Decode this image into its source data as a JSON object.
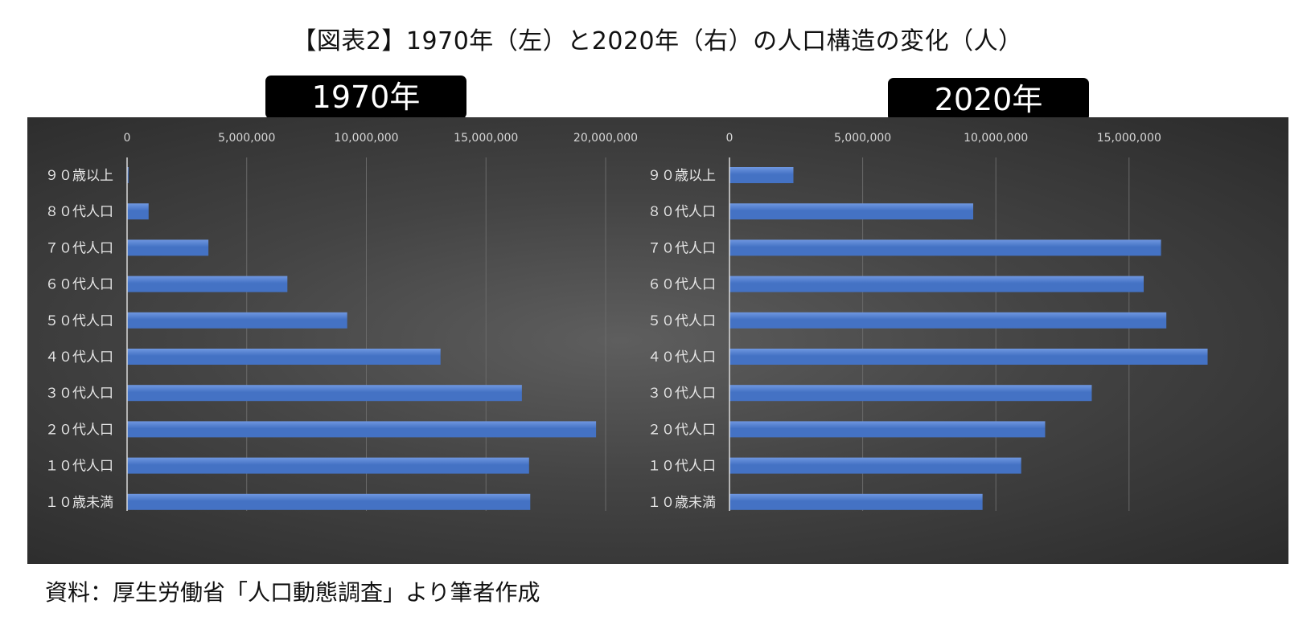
{
  "title": "【図表2】1970年（左）と2020年（右）の人口構造の変化（人）",
  "source": "資料：厚生労働省「人口動態調査」より筆者作成",
  "colors": {
    "bar": "#4472c4",
    "bar_highlight": "#6f97e0",
    "gridline": "#6a6a6a",
    "axis": "#d9d9d9",
    "panel_background": "#3a3a3a"
  },
  "chart_data": [
    {
      "type": "bar",
      "orientation": "horizontal",
      "title": "1970年",
      "categories": [
        "９０歳以上",
        "８０代人口",
        "７０代人口",
        "６０代人口",
        "５０代人口",
        "４０代人口",
        "３０代人口",
        "２０代人口",
        "１０代人口",
        "１０歳未満"
      ],
      "values": [
        60000,
        900000,
        3400000,
        6700000,
        9200000,
        13100000,
        16500000,
        19600000,
        16800000,
        16850000
      ],
      "xlim": [
        0,
        20000000
      ],
      "ticks": [
        0,
        5000000,
        10000000,
        15000000,
        20000000
      ],
      "tick_labels": [
        "0",
        "5,000,000",
        "10,000,000",
        "15,000,000",
        "20,000,000"
      ],
      "axis_position": "top",
      "grid": true
    },
    {
      "type": "bar",
      "orientation": "horizontal",
      "title": "2020年",
      "categories": [
        "９０歳以上",
        "８０代人口",
        "７０代人口",
        "６０代人口",
        "５０代人口",
        "４０代人口",
        "３０代人口",
        "２０代人口",
        "１０代人口",
        "１０歳未満"
      ],
      "values": [
        2400000,
        9150000,
        16200000,
        15550000,
        16400000,
        17950000,
        13600000,
        11850000,
        10950000,
        9500000
      ],
      "xlim": [
        0,
        17500000
      ],
      "ticks": [
        0,
        5000000,
        10000000,
        15000000
      ],
      "tick_labels": [
        "0",
        "5,000,000",
        "10,000,000",
        "15,000,000"
      ],
      "axis_position": "top",
      "grid": true
    }
  ]
}
